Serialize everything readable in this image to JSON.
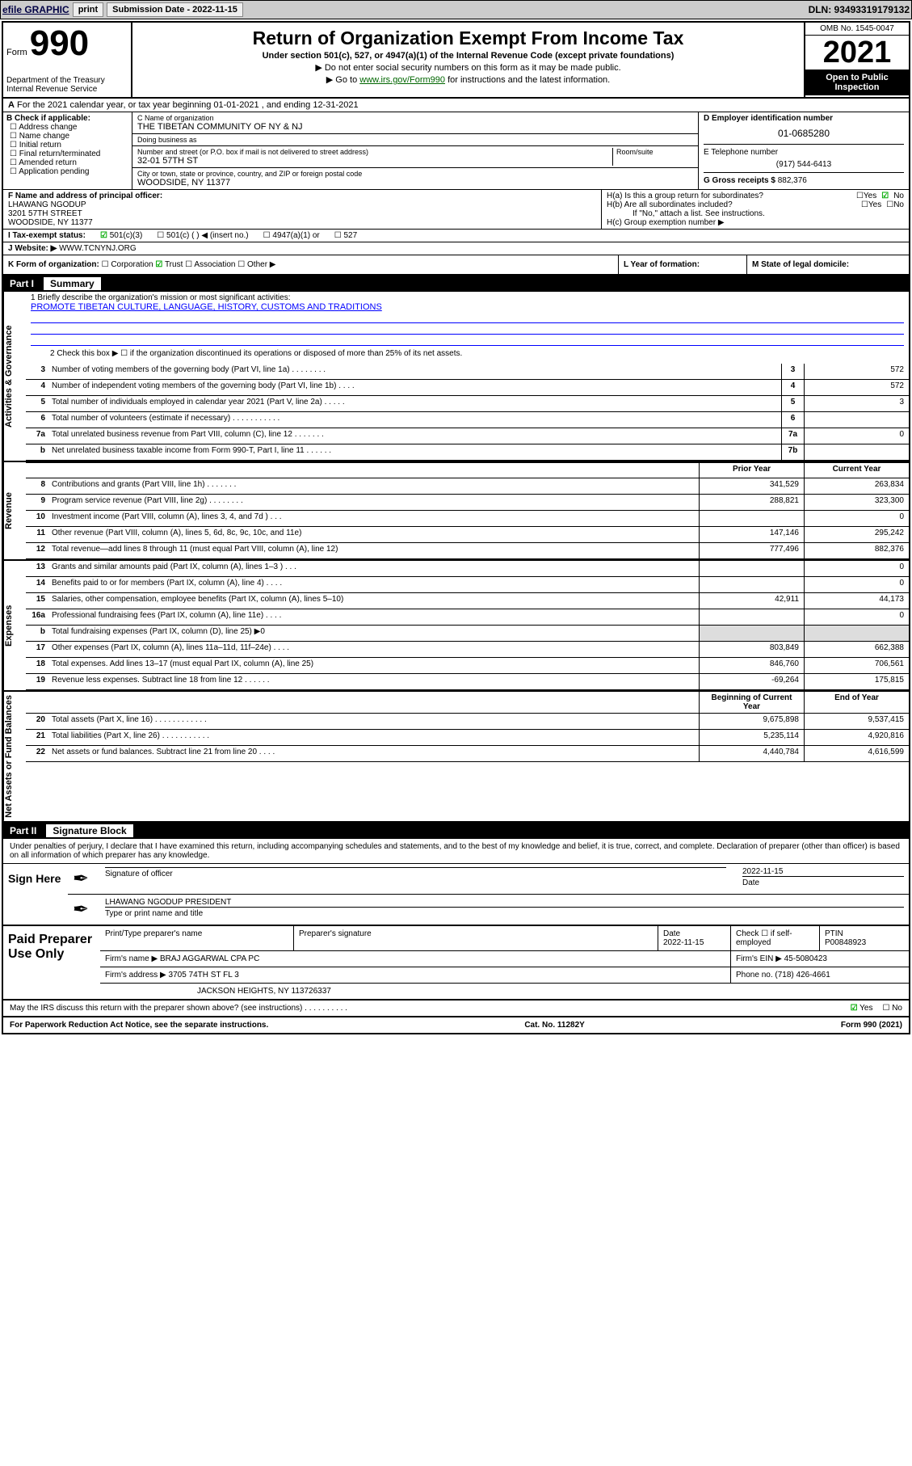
{
  "toolbar": {
    "efile": "efile GRAPHIC",
    "print": "print",
    "subdate_label": "Submission Date - 2022-11-15",
    "dln": "DLN: 93493319179132"
  },
  "header": {
    "form_label": "Form",
    "form_num": "990",
    "dept": "Department of the Treasury\nInternal Revenue Service",
    "title": "Return of Organization Exempt From Income Tax",
    "subtitle": "Under section 501(c), 527, or 4947(a)(1) of the Internal Revenue Code (except private foundations)",
    "hint1": "▶ Do not enter social security numbers on this form as it may be made public.",
    "hint2_pre": "▶ Go to ",
    "hint2_link": "www.irs.gov/Form990",
    "hint2_post": " for instructions and the latest information.",
    "omb": "OMB No. 1545-0047",
    "year": "2021",
    "inspection": "Open to Public Inspection"
  },
  "period": "For the 2021 calendar year, or tax year beginning 01-01-2021   , and ending 12-31-2021",
  "checkB": {
    "label": "B Check if applicable:",
    "items": [
      "Address change",
      "Name change",
      "Initial return",
      "Final return/terminated",
      "Amended return",
      "Application pending"
    ]
  },
  "boxC": {
    "name_lbl": "C Name of organization",
    "name": "THE TIBETAN COMMUNITY OF NY & NJ",
    "dba_lbl": "Doing business as",
    "dba": "",
    "street_lbl": "Number and street (or P.O. box if mail is not delivered to street address)",
    "street": "32-01 57TH ST",
    "room_lbl": "Room/suite",
    "city_lbl": "City or town, state or province, country, and ZIP or foreign postal code",
    "city": "WOODSIDE, NY  11377"
  },
  "boxD": {
    "ein_lbl": "D Employer identification number",
    "ein": "01-0685280",
    "phone_lbl": "E Telephone number",
    "phone": "(917) 544-6413",
    "gross_lbl": "G Gross receipts $",
    "gross": "882,376"
  },
  "boxF": {
    "lbl": "F  Name and address of principal officer:",
    "name": "LHAWANG NGODUP",
    "addr1": "3201 57TH STREET",
    "addr2": "WOODSIDE, NY  11377"
  },
  "boxH": {
    "ha": "H(a)  Is this a group return for subordinates?",
    "hb": "H(b)  Are all subordinates included?",
    "hb_note": "If \"No,\" attach a list. See instructions.",
    "hc": "H(c)  Group exemption number ▶"
  },
  "taxstatus": {
    "lbl": "I    Tax-exempt status:",
    "opts": [
      "501(c)(3)",
      "501(c) (  ) ◀ (insert no.)",
      "4947(a)(1) or",
      "527"
    ]
  },
  "website": {
    "lbl": "J    Website: ▶",
    "val": "WWW.TCNYNJ.ORG"
  },
  "kline": {
    "k": "K Form of organization:",
    "opts": [
      "Corporation",
      "Trust",
      "Association",
      "Other ▶"
    ],
    "l": "L Year of formation:",
    "m": "M State of legal domicile:"
  },
  "part1": {
    "label": "Part I",
    "title": "Summary"
  },
  "summary": {
    "gov_label": "Activities & Governance",
    "rev_label": "Revenue",
    "exp_label": "Expenses",
    "net_label": "Net Assets or Fund Balances",
    "mission_lbl": "1  Briefly describe the organization's mission or most significant activities:",
    "mission": "PROMOTE TIBETAN CULTURE, LANGUAGE, HISTORY, CUSTOMS AND TRADITIONS",
    "l2": "2    Check this box ▶ ☐  if the organization discontinued its operations or disposed of more than 25% of its net assets.",
    "lines_gov": [
      {
        "n": "3",
        "t": "Number of voting members of the governing body (Part VI, line 1a)  .    .    .    .    .    .    .    .",
        "b": "3",
        "v": "572"
      },
      {
        "n": "4",
        "t": "Number of independent voting members of the governing body (Part VI, line 1b)   .    .    .    .",
        "b": "4",
        "v": "572"
      },
      {
        "n": "5",
        "t": "Total number of individuals employed in calendar year 2021 (Part V, line 2a)    .    .    .    .    .",
        "b": "5",
        "v": "3"
      },
      {
        "n": "6",
        "t": "Total number of volunteers (estimate if necessary)  .    .    .    .    .    .    .    .    .    .    .",
        "b": "6",
        "v": ""
      },
      {
        "n": "7a",
        "t": "Total unrelated business revenue from Part VIII, column (C), line 12   .    .    .    .    .    .    .",
        "b": "7a",
        "v": "0"
      },
      {
        "n": "b",
        "t": "Net unrelated business taxable income from Form 990-T, Part I, line 11    .    .    .    .    .    .",
        "b": "7b",
        "v": ""
      }
    ],
    "col_prior": "Prior Year",
    "col_curr": "Current Year",
    "col_begin": "Beginning of Current Year",
    "col_end": "End of Year",
    "lines_rev": [
      {
        "n": "8",
        "t": "Contributions and grants (Part VIII, line 1h)    .    .    .    .    .    .    .    ",
        "p": "341,529",
        "c": "263,834"
      },
      {
        "n": "9",
        "t": "Program service revenue (Part VIII, line 2g)   .    .    .    .    .    .    .    .",
        "p": "288,821",
        "c": "323,300"
      },
      {
        "n": "10",
        "t": "Investment income (Part VIII, column (A), lines 3, 4, and 7d )    .    .    .",
        "p": "",
        "c": "0"
      },
      {
        "n": "11",
        "t": "Other revenue (Part VIII, column (A), lines 5, 6d, 8c, 9c, 10c, and 11e)",
        "p": "147,146",
        "c": "295,242"
      },
      {
        "n": "12",
        "t": "Total revenue—add lines 8 through 11 (must equal Part VIII, column (A), line 12)",
        "p": "777,496",
        "c": "882,376"
      }
    ],
    "lines_exp": [
      {
        "n": "13",
        "t": "Grants and similar amounts paid (Part IX, column (A), lines 1–3 )   .    .    .",
        "p": "",
        "c": "0"
      },
      {
        "n": "14",
        "t": "Benefits paid to or for members (Part IX, column (A), line 4)  .    .    .    .",
        "p": "",
        "c": "0"
      },
      {
        "n": "15",
        "t": "Salaries, other compensation, employee benefits (Part IX, column (A), lines 5–10)",
        "p": "42,911",
        "c": "44,173"
      },
      {
        "n": "16a",
        "t": "Professional fundraising fees (Part IX, column (A), line 11e)   .    .    .    .",
        "p": "",
        "c": "0"
      },
      {
        "n": "b",
        "t": "Total fundraising expenses (Part IX, column (D), line 25) ▶0",
        "p": "shade",
        "c": "shade"
      },
      {
        "n": "17",
        "t": "Other expenses (Part IX, column (A), lines 11a–11d, 11f–24e)  .    .    .    .",
        "p": "803,849",
        "c": "662,388"
      },
      {
        "n": "18",
        "t": "Total expenses. Add lines 13–17 (must equal Part IX, column (A), line 25)",
        "p": "846,760",
        "c": "706,561"
      },
      {
        "n": "19",
        "t": "Revenue less expenses. Subtract line 18 from line 12  .    .    .    .    .    .",
        "p": "-69,264",
        "c": "175,815"
      }
    ],
    "lines_net": [
      {
        "n": "20",
        "t": "Total assets (Part X, line 16)  .    .    .    .    .    .    .    .    .    .    .    .",
        "p": "9,675,898",
        "c": "9,537,415"
      },
      {
        "n": "21",
        "t": "Total liabilities (Part X, line 26)  .    .    .    .    .    .    .    .    .    .    .",
        "p": "5,235,114",
        "c": "4,920,816"
      },
      {
        "n": "22",
        "t": "Net assets or fund balances. Subtract line 21 from line 20   .    .    .    .",
        "p": "4,440,784",
        "c": "4,616,599"
      }
    ]
  },
  "part2": {
    "label": "Part II",
    "title": "Signature Block"
  },
  "penalties": "Under penalties of perjury, I declare that I have examined this return, including accompanying schedules and statements, and to the best of my knowledge and belief, it is true, correct, and complete. Declaration of preparer (other than officer) is based on all information of which preparer has any knowledge.",
  "sign": {
    "label": "Sign Here",
    "sig_lbl": "Signature of officer",
    "date": "2022-11-15",
    "date_lbl": "Date",
    "name": "LHAWANG NGODUP  PRESIDENT",
    "name_lbl": "Type or print name and title"
  },
  "paid": {
    "label": "Paid Preparer Use Only",
    "h1": "Print/Type preparer's name",
    "h2": "Preparer's signature",
    "h3": "Date",
    "date": "2022-11-15",
    "h4_pre": "Check ☐ if self-employed",
    "h5": "PTIN",
    "ptin": "P00848923",
    "firm_lbl": "Firm's name      ▶",
    "firm": "BRAJ AGGARWAL CPA PC",
    "ein_lbl": "Firm's EIN ▶",
    "ein": "45-5080423",
    "addr_lbl": "Firm's address ▶",
    "addr1": "3705 74TH ST FL 3",
    "addr2": "JACKSON HEIGHTS, NY  113726337",
    "phone_lbl": "Phone no.",
    "phone": "(718) 426-4661"
  },
  "discuss": "May the IRS discuss this return with the preparer shown above? (see instructions)   .    .    .    .    .    .    .    .    .    .",
  "footer": {
    "l": "For Paperwork Reduction Act Notice, see the separate instructions.",
    "m": "Cat. No. 11282Y",
    "r": "Form 990 (2021)"
  }
}
